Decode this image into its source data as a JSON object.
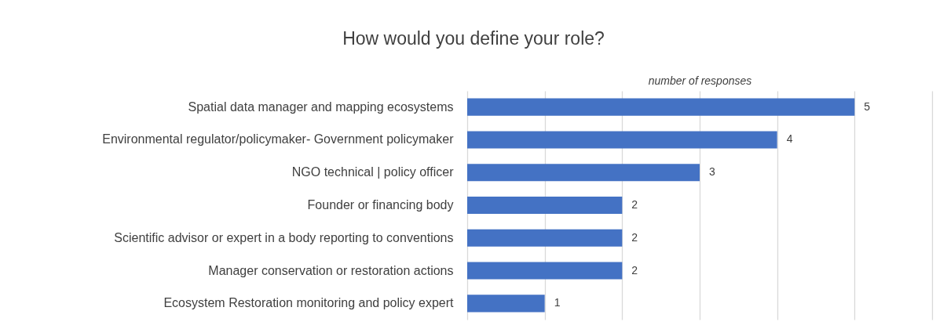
{
  "chart_data": {
    "type": "bar",
    "orientation": "horizontal",
    "title": "How would you define your role?",
    "xlabel": "number of responses",
    "categories": [
      "Spatial data manager and mapping ecosystems",
      "Environmental regulator/policymaker- Government policymaker",
      "NGO technical | policy officer",
      "Founder or financing body",
      "Scientific advisor or expert in a body reporting to conventions",
      "Manager conservation or restoration actions",
      "Ecosystem Restoration monitoring and policy expert"
    ],
    "values": [
      5,
      4,
      3,
      2,
      2,
      2,
      1
    ],
    "color": "#4472c4",
    "data_labels": true,
    "xlim": [
      0,
      6
    ],
    "xticks": [
      {
        "value": 0,
        "label": null
      },
      {
        "value": 1,
        "label": null
      },
      {
        "value": 2,
        "label": null
      },
      {
        "value": 3,
        "label": null
      },
      {
        "value": 4,
        "label": null
      },
      {
        "value": 5,
        "label": null
      },
      {
        "value": 6,
        "label": null
      }
    ],
    "grid": "x",
    "tick_labels": "y"
  }
}
